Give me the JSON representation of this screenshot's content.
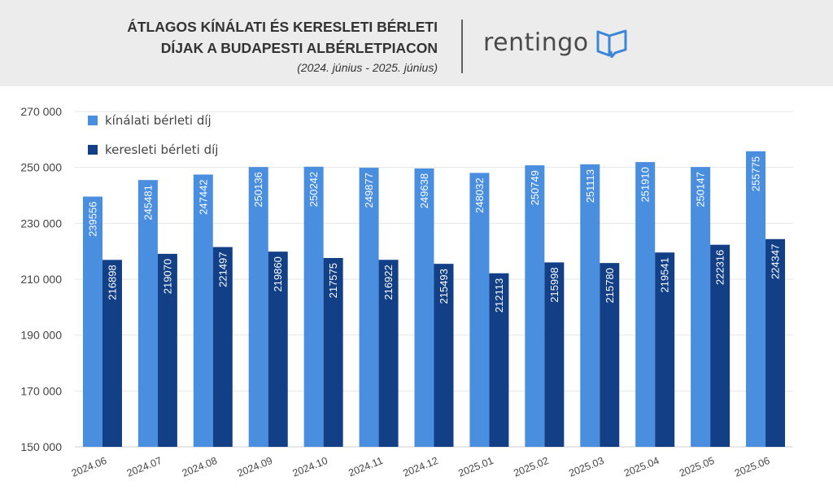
{
  "header": {
    "title_line1": "ÁTLAGOS KÍNÁLATI ÉS KERESLETI BÉRLETI",
    "title_line2": "DÍJAK A BUDAPESTI ALBÉRLETPIACON",
    "subtitle": "(2024. június - 2025. június)",
    "logo_text": "rentingo"
  },
  "colors": {
    "header_bg": "#ececec",
    "offer_series": "#4a8ee0",
    "demand_series": "#123f86",
    "brand_icon": "#3a86d8"
  },
  "chart_data": {
    "type": "bar",
    "categories": [
      "2024.06",
      "2024.07",
      "2024.08",
      "2024.09",
      "2024.10",
      "2024.11",
      "2024.12",
      "2025.01",
      "2025.02",
      "2025.03",
      "2025.04",
      "2025.05",
      "2025.06"
    ],
    "series": [
      {
        "name": "kínálati bérleti díj",
        "color": "#4a8ee0",
        "values": [
          239556,
          245481,
          247442,
          250136,
          250242,
          249877,
          249638,
          248032,
          250749,
          251113,
          251910,
          250147,
          255775
        ]
      },
      {
        "name": "keresleti bérleti díj",
        "color": "#123f86",
        "values": [
          216898,
          219070,
          221497,
          219860,
          217575,
          216922,
          215493,
          212113,
          215998,
          215780,
          219541,
          222316,
          224347
        ]
      }
    ],
    "ylim": [
      150000,
      270000
    ],
    "yticks": [
      150000,
      170000,
      190000,
      210000,
      230000,
      250000,
      270000
    ],
    "ytick_labels": [
      "150 000",
      "170 000",
      "190 000",
      "210 000",
      "230 000",
      "250 000",
      "270 000"
    ],
    "grid": true,
    "legend_position": "top-left",
    "data_labels": "inside-bar-rotated"
  }
}
